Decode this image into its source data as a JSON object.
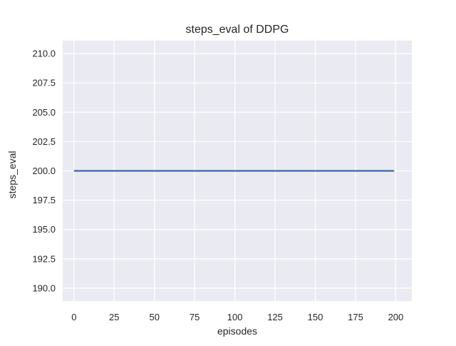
{
  "figure": {
    "background_color": "#ffffff"
  },
  "chart_data": {
    "type": "line",
    "title": "steps_eval of DDPG",
    "xlabel": "episodes",
    "ylabel": "steps_eval",
    "xlim": [
      -7,
      210
    ],
    "ylim": [
      188.9,
      211.1
    ],
    "grid": true,
    "legend": "none",
    "x_ticks": {
      "values": [
        0,
        25,
        50,
        75,
        100,
        125,
        150,
        175,
        200
      ],
      "labels": [
        "0",
        "25",
        "50",
        "75",
        "100",
        "125",
        "150",
        "175",
        "200"
      ]
    },
    "y_ticks": {
      "values": [
        190.0,
        192.5,
        195.0,
        197.5,
        200.0,
        202.5,
        205.0,
        207.5,
        210.0
      ],
      "labels": [
        "190.0",
        "192.5",
        "195.0",
        "197.5",
        "200.0",
        "202.5",
        "205.0",
        "207.5",
        "210.0"
      ]
    },
    "series": [
      {
        "name": "DDPG",
        "x": [
          0,
          199
        ],
        "y": [
          200,
          200
        ],
        "color": "#4c72b0",
        "line_width": 2.5
      }
    ],
    "style": {
      "plot_background_color": "#eaeaf2",
      "grid_color": "#ffffff",
      "text_color": "#262626",
      "accent_color": "#4c72b0"
    }
  }
}
